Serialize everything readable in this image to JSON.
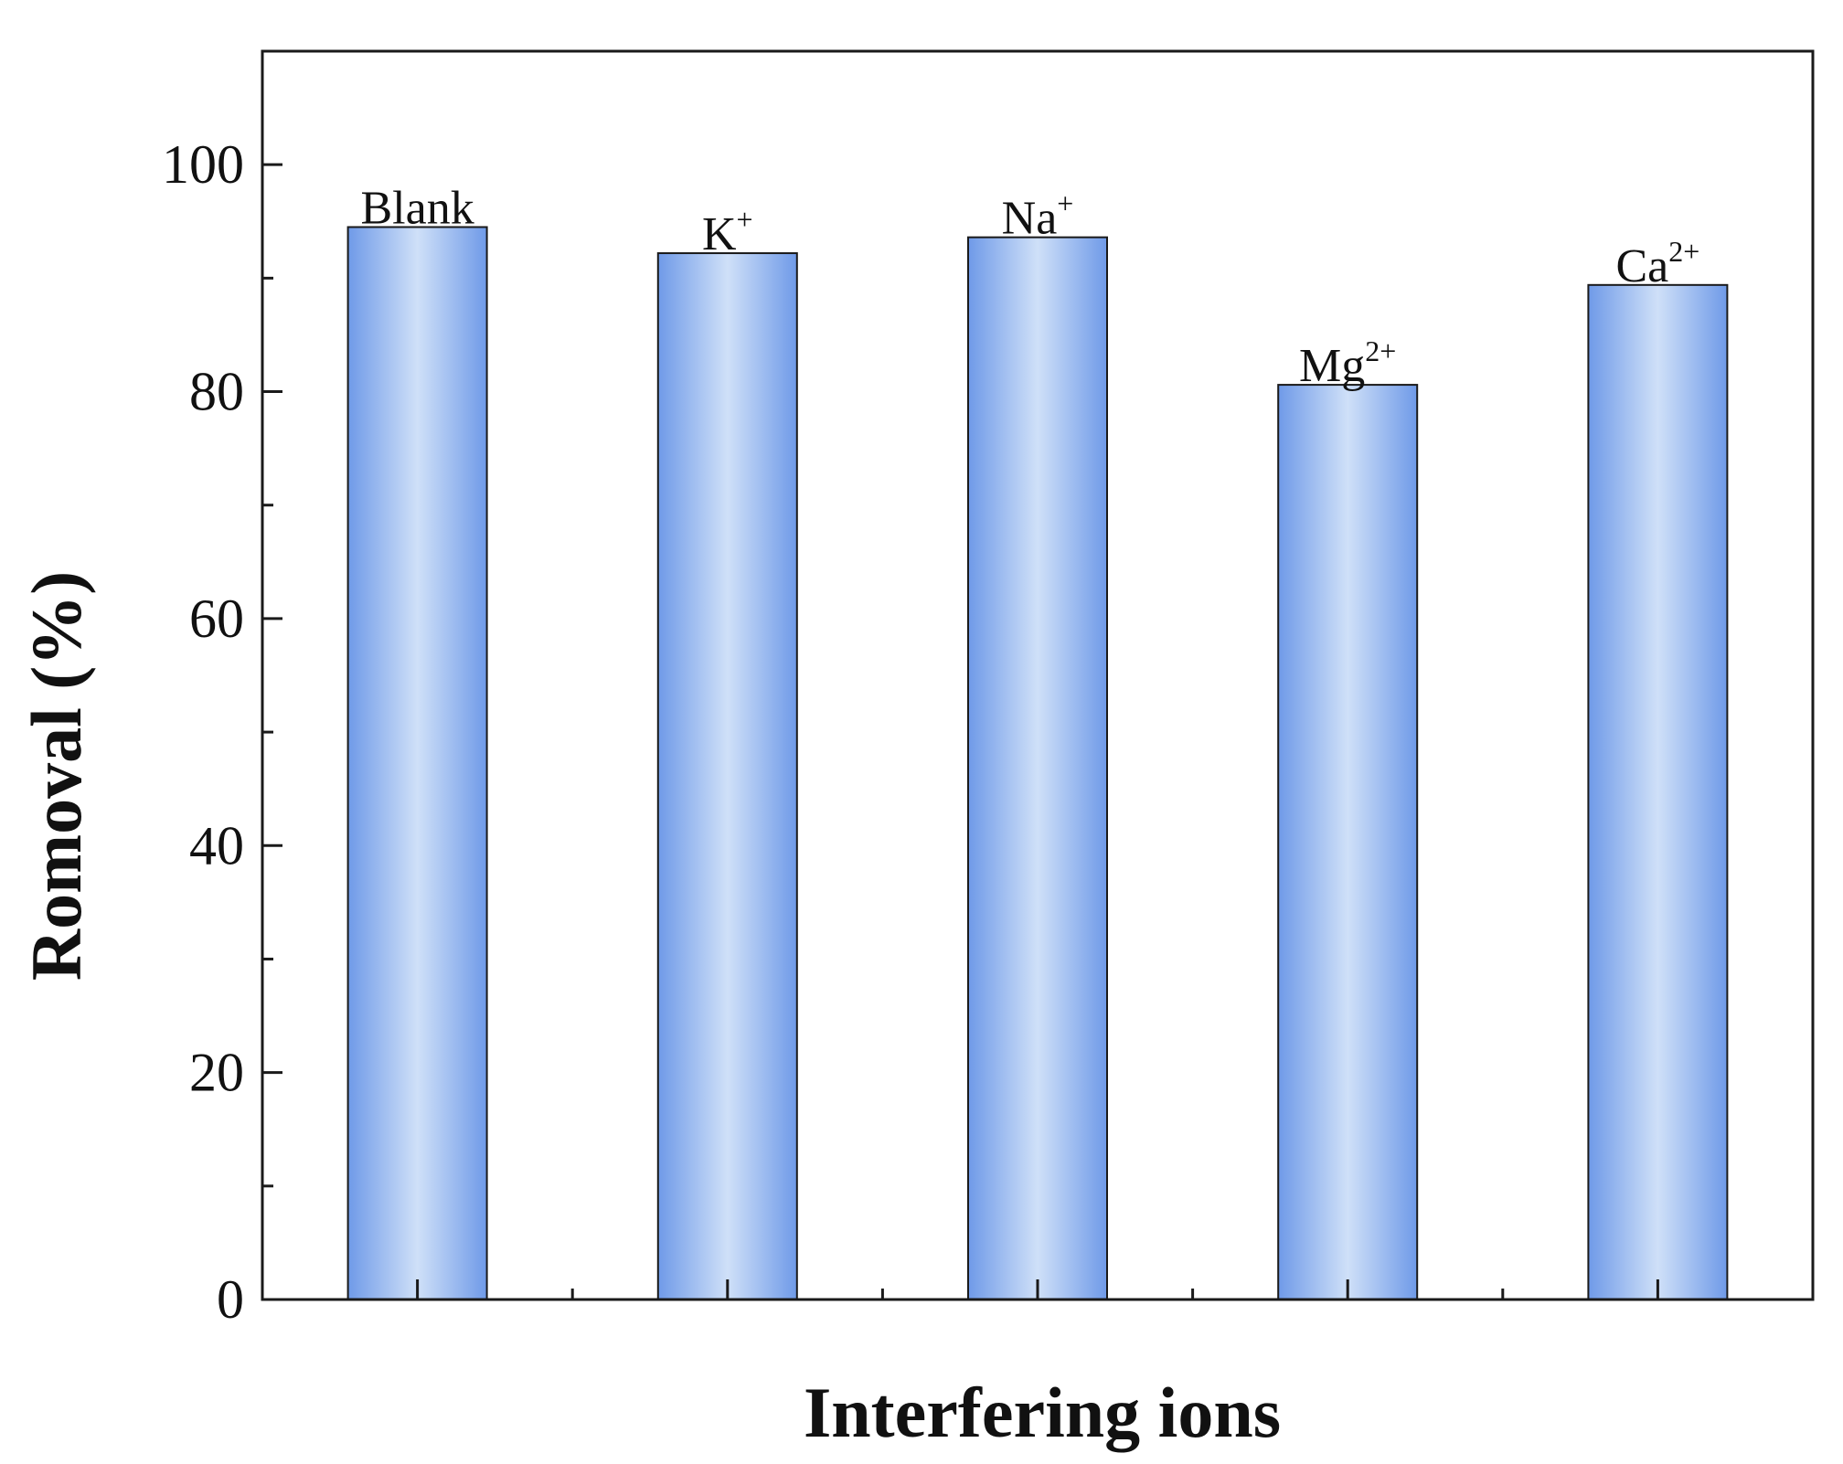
{
  "chart_data": {
    "type": "bar",
    "title": "",
    "xlabel": "Interfering ions",
    "ylabel": "Romoval (%)",
    "ylim": [
      0,
      110
    ],
    "yticks": [
      0,
      20,
      40,
      60,
      80,
      100
    ],
    "yticks_minor": [
      10,
      30,
      50,
      70,
      90
    ],
    "grid": false,
    "legend": "none",
    "categories": [
      "Blank",
      "K+",
      "Na+",
      "Mg2+",
      "Ca2+"
    ],
    "values": [
      94.5,
      92.2,
      93.6,
      80.6,
      89.4
    ],
    "bar_labels": [
      {
        "base": "Blank",
        "sup": ""
      },
      {
        "base": "K",
        "sup": "+"
      },
      {
        "base": "Na",
        "sup": "+"
      },
      {
        "base": "Mg",
        "sup": "2+"
      },
      {
        "base": "Ca",
        "sup": "2+"
      }
    ],
    "colors": {
      "bar_edge": "#6f9ae8",
      "bar_center": "#cfe0f8",
      "bar_outline": "#1a1a1a",
      "axis": "#1a1a1a"
    }
  }
}
